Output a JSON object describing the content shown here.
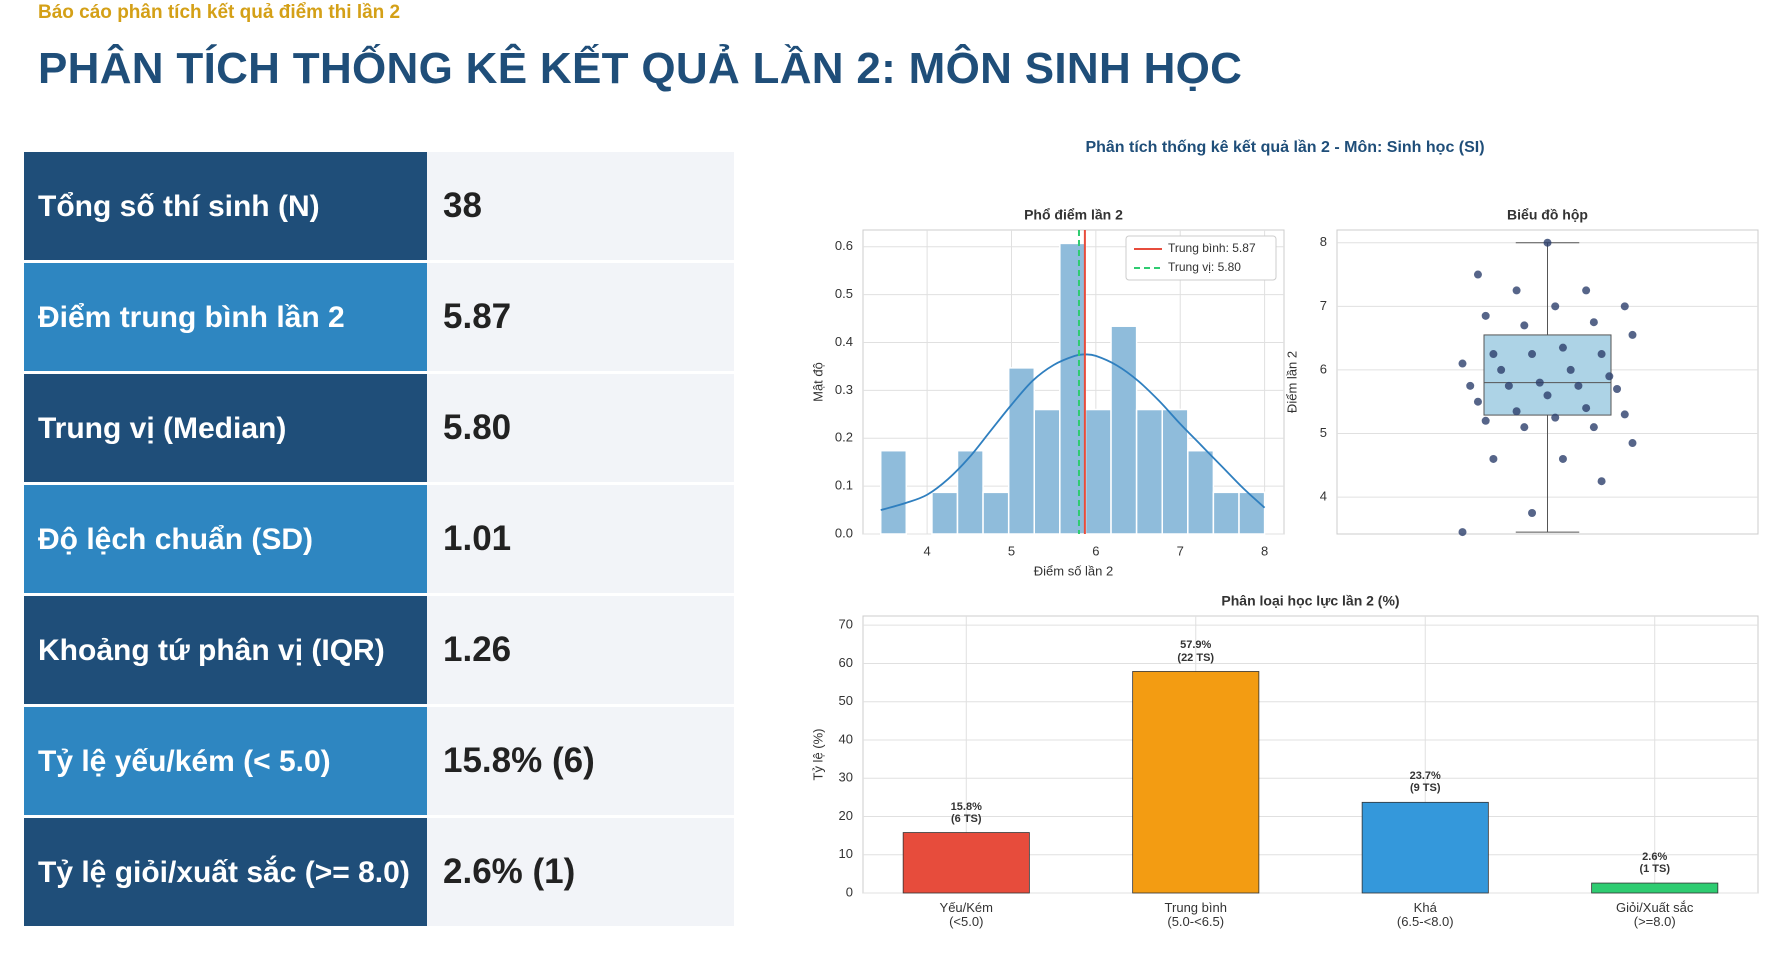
{
  "header": {
    "subtitle": "Báo cáo phân tích kết quả điểm thi lần 2",
    "title": "PHÂN TÍCH THỐNG KÊ KẾT QUẢ LẦN 2: MÔN SINH HỌC"
  },
  "table": {
    "rows": [
      [
        "Tổng số thí sinh (N)",
        "38"
      ],
      [
        "Điểm trung bình lần 2",
        "5.87"
      ],
      [
        "Trung vị (Median)",
        "5.80"
      ],
      [
        "Độ lệch chuẩn (SD)",
        "1.01"
      ],
      [
        "Khoảng tứ phân vị (IQR)",
        "1.26"
      ],
      [
        "Tỷ lệ yếu/kém (< 5.0)",
        "15.8% (6)"
      ],
      [
        "Tỷ lệ giỏi/xuất sắc (>= 8.0)",
        "2.6% (1)"
      ]
    ]
  },
  "figure_title": "Phân tích thống kê kết quả lần 2 - Môn: Sinh học (SI)",
  "chart_data": [
    {
      "type": "histogram",
      "title": "Phổ điểm lần 2",
      "xlabel": "Điểm số lần 2",
      "ylabel": "Mật độ",
      "bins": [
        3.45,
        3.753,
        4.057,
        4.36,
        4.663,
        4.967,
        5.27,
        5.573,
        5.877,
        6.18,
        6.483,
        6.787,
        7.09,
        7.393,
        7.697,
        8.0
      ],
      "values": [
        0.174,
        0,
        0.087,
        0.174,
        0.087,
        0.347,
        0.26,
        0.607,
        0.26,
        0.434,
        0.26,
        0.26,
        0.174,
        0.087,
        0.087
      ],
      "color": "#8fbcdb",
      "xlim": [
        3.24,
        8.23
      ],
      "ylim": [
        0,
        0.635
      ],
      "xticks": [
        4,
        5,
        6,
        7,
        8
      ],
      "yticks": [
        {
          "value": 0,
          "label": "0.0"
        },
        0.1,
        0.2,
        0.3,
        0.4,
        0.5,
        0.6
      ],
      "grid": true,
      "kde": {
        "color": "#2f7fbf",
        "x": [
          3.45,
          3.75,
          4.0,
          4.25,
          4.5,
          4.75,
          5.0,
          5.25,
          5.5,
          5.75,
          5.87,
          6.0,
          6.25,
          6.5,
          6.75,
          7.0,
          7.25,
          7.5,
          7.75,
          8.0
        ],
        "y": [
          0.05,
          0.065,
          0.082,
          0.115,
          0.16,
          0.215,
          0.27,
          0.32,
          0.353,
          0.372,
          0.375,
          0.372,
          0.352,
          0.32,
          0.278,
          0.23,
          0.185,
          0.14,
          0.095,
          0.055
        ]
      },
      "lines": [
        {
          "name": "Trung bình: 5.87",
          "value": 5.87,
          "color": "#e74c3c",
          "style": "solid"
        },
        {
          "name": "Trung vị: 5.80",
          "value": 5.8,
          "color": "#2ecc71",
          "style": "dashed"
        }
      ],
      "legend": "upper right"
    },
    {
      "type": "box",
      "title": "Biểu đồ hộp",
      "ylabel": "Điểm lần 2",
      "ylim": [
        3.42,
        8.2
      ],
      "yticks": [
        4,
        5,
        6,
        7,
        8
      ],
      "grid": true,
      "whislo": 3.45,
      "q1": 5.29,
      "med": 5.8,
      "q3": 6.55,
      "whishi": 8.0,
      "color": "#add3e6",
      "point_color": "#2c3e6b",
      "points": [
        8.0,
        7.5,
        7.25,
        7.25,
        7.0,
        7.0,
        6.85,
        6.75,
        6.7,
        6.55,
        6.35,
        6.25,
        6.25,
        6.25,
        6.1,
        6.0,
        6.0,
        5.9,
        5.8,
        5.75,
        5.75,
        5.75,
        5.7,
        5.6,
        5.5,
        5.4,
        5.35,
        5.3,
        5.25,
        5.2,
        5.1,
        5.1,
        4.85,
        4.6,
        4.6,
        4.25,
        3.75,
        3.45
      ]
    },
    {
      "type": "bar",
      "title": "Phân loại học lực lần 2 (%)",
      "ylabel": "Tỷ lệ (%)",
      "categories": [
        "Yếu/Kém\n(<5.0)",
        "Trung bình\n(5.0-<6.5)",
        "Khá\n(6.5-<8.0)",
        "Giỏi/Xuất sắc\n(>=8.0)"
      ],
      "values": [
        15.8,
        57.9,
        23.7,
        2.6
      ],
      "value_labels": [
        "15.8%\n(6 TS)",
        "57.9%\n(22 TS)",
        "23.7%\n(9 TS)",
        "2.6%\n(1 TS)"
      ],
      "colors": [
        "#e74c3c",
        "#f39c12",
        "#3498db",
        "#2ecc71"
      ],
      "ylim": [
        0,
        72.4
      ],
      "yticks": [
        0,
        10,
        20,
        30,
        40,
        50,
        60,
        70
      ],
      "grid": true
    }
  ]
}
